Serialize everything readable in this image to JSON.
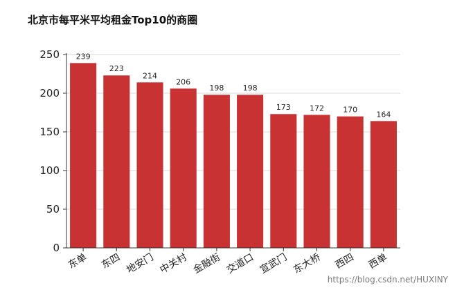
{
  "chart_data": {
    "type": "bar",
    "title": "北京市每平米平均租金Top10的商圈",
    "categories": [
      "东单",
      "东四",
      "地安门",
      "中关村",
      "金融街",
      "交道口",
      "宣武门",
      "东大桥",
      "西四",
      "西单"
    ],
    "values": [
      239,
      223,
      214,
      206,
      198,
      198,
      173,
      172,
      170,
      164
    ],
    "data_labels": [
      "239",
      "223",
      "214",
      "206",
      "198",
      "198",
      "173",
      "172",
      "170",
      "164"
    ],
    "ylim": [
      0,
      250
    ],
    "yticks": [
      0,
      50,
      100,
      150,
      200,
      250
    ],
    "ytick_labels": [
      "0",
      "50",
      "100",
      "150",
      "200",
      "250"
    ],
    "grid": true,
    "legend": "none",
    "bar_color": "#c93232",
    "xlabel": "",
    "ylabel": ""
  },
  "watermark": "https://blog.csdn.net/HUXINY"
}
